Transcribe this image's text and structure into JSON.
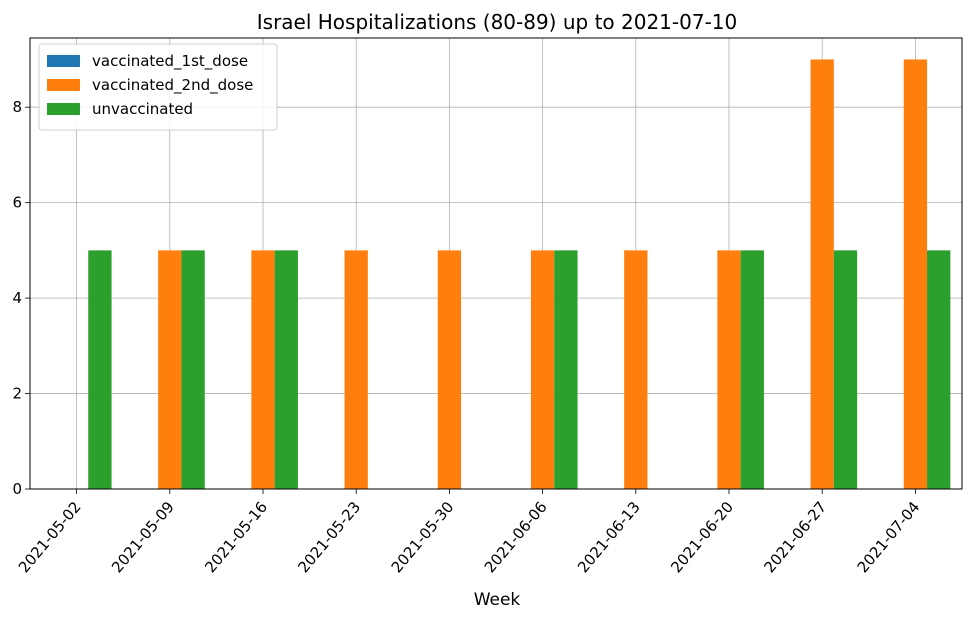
{
  "chart_data": {
    "type": "bar",
    "title": "Israel Hospitalizations (80-89) up to 2021-07-10",
    "xlabel": "Week",
    "ylabel": "",
    "categories": [
      "2021-05-02",
      "2021-05-09",
      "2021-05-16",
      "2021-05-23",
      "2021-05-30",
      "2021-06-06",
      "2021-06-13",
      "2021-06-20",
      "2021-06-27",
      "2021-07-04"
    ],
    "series": [
      {
        "name": "vaccinated_1st_dose",
        "color": "#1f77b4",
        "values": [
          0,
          0,
          0,
          0,
          0,
          0,
          0,
          0,
          0,
          0
        ]
      },
      {
        "name": "vaccinated_2nd_dose",
        "color": "#ff7f0e",
        "values": [
          0,
          5,
          5,
          5,
          5,
          5,
          5,
          5,
          9,
          9
        ]
      },
      {
        "name": "unvaccinated",
        "color": "#2ca02c",
        "values": [
          5,
          5,
          5,
          0,
          0,
          5,
          0,
          5,
          5,
          5
        ]
      }
    ],
    "ylim": [
      0,
      9.45
    ],
    "yticks": [
      0,
      2,
      4,
      6,
      8
    ],
    "grid": true,
    "legend": "top-left"
  }
}
